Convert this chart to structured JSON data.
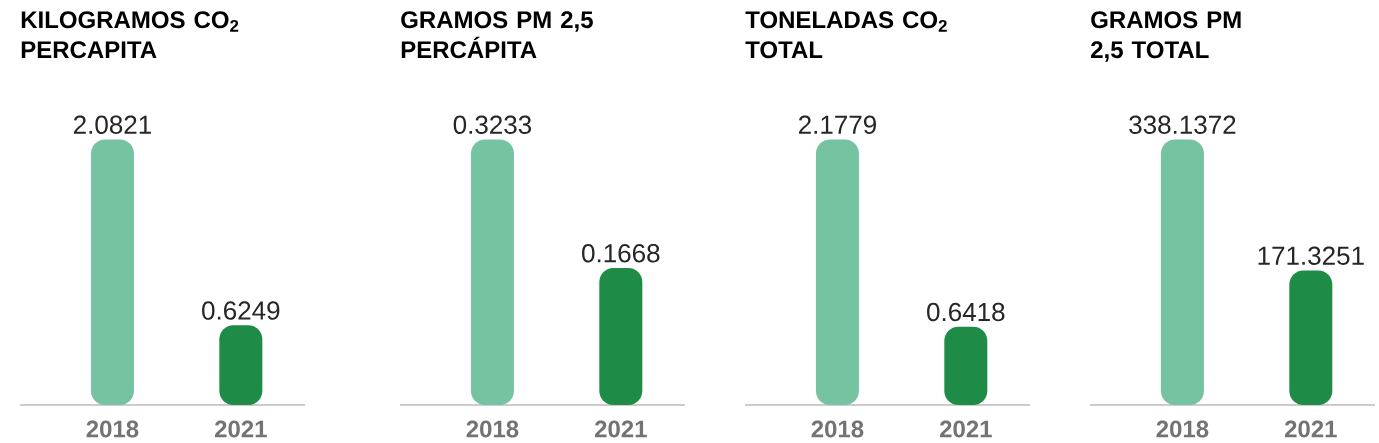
{
  "chart_data": [
    {
      "type": "bar",
      "title": "KILOGRAMOS CO$_{2}$ PERCAPITA",
      "categories": [
        "2018",
        "2021"
      ],
      "values": [
        2.0821,
        0.6249
      ],
      "colors": [
        "#76c3a2",
        "#1e8c47"
      ],
      "data_labels": true
    },
    {
      "type": "bar",
      "title": "GRAMOS PM 2,5 PERCÁPITA",
      "categories": [
        "2018",
        "2021"
      ],
      "values": [
        0.3233,
        0.1668
      ],
      "colors": [
        "#76c3a2",
        "#1e8c47"
      ],
      "data_labels": true
    },
    {
      "type": "bar",
      "title": "TONELADAS CO$_{2}$ TOTAL",
      "categories": [
        "2018",
        "2021"
      ],
      "values": [
        2.1779,
        0.6418
      ],
      "colors": [
        "#76c3a2",
        "#1e8c47"
      ],
      "data_labels": true
    },
    {
      "type": "bar",
      "title": "GRAMOS PM 2,5 TOTAL",
      "categories": [
        "2018",
        "2021"
      ],
      "values": [
        338.1372,
        171.3251
      ],
      "colors": [
        "#76c3a2",
        "#1e8c47"
      ],
      "data_labels": true
    }
  ]
}
